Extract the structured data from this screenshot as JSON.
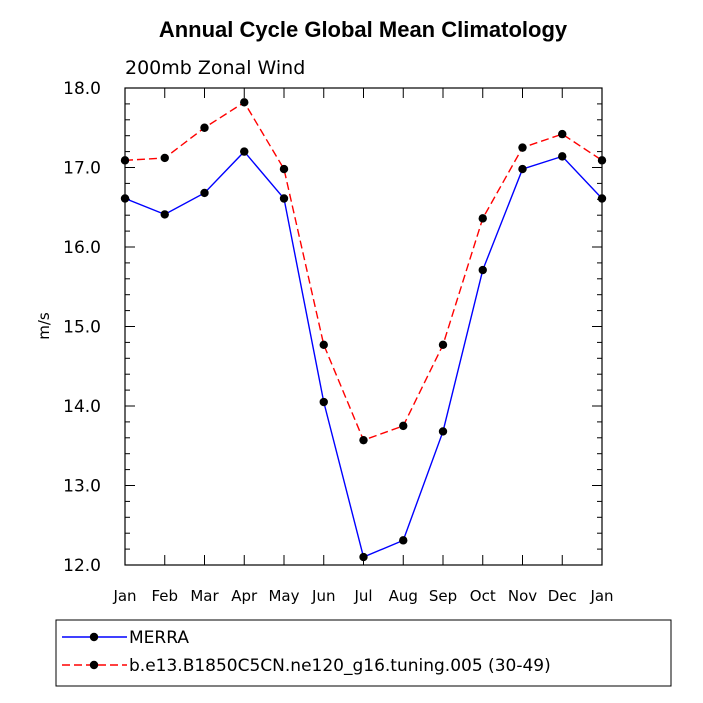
{
  "chart_data": {
    "type": "line",
    "title": "Annual Cycle Global Mean Climatology",
    "subtitle": "200mb Zonal Wind",
    "xlabel": "",
    "ylabel": "m/s",
    "categories": [
      "Jan",
      "Feb",
      "Mar",
      "Apr",
      "May",
      "Jun",
      "Jul",
      "Aug",
      "Sep",
      "Oct",
      "Nov",
      "Dec",
      "Jan"
    ],
    "ylim": [
      12.0,
      18.0
    ],
    "yticks": [
      "12.0",
      "13.0",
      "14.0",
      "15.0",
      "16.0",
      "17.0",
      "18.0"
    ],
    "grid": false,
    "legend_placement": "bottom",
    "series": [
      {
        "name": "MERRA",
        "color": "#0000ff",
        "line_style": "solid",
        "marker": "filled-circle",
        "values": [
          16.61,
          16.41,
          16.68,
          17.2,
          16.61,
          14.05,
          12.1,
          12.31,
          13.68,
          15.71,
          16.98,
          17.14,
          16.61
        ]
      },
      {
        "name": "b.e13.B1850C5CN.ne120_g16.tuning.005 (30-49)",
        "color": "#ff0000",
        "line_style": "dashed",
        "marker": "filled-circle",
        "values": [
          17.09,
          17.12,
          17.5,
          17.82,
          16.98,
          14.77,
          13.57,
          13.75,
          14.77,
          16.36,
          17.25,
          17.42,
          17.09
        ]
      }
    ]
  }
}
